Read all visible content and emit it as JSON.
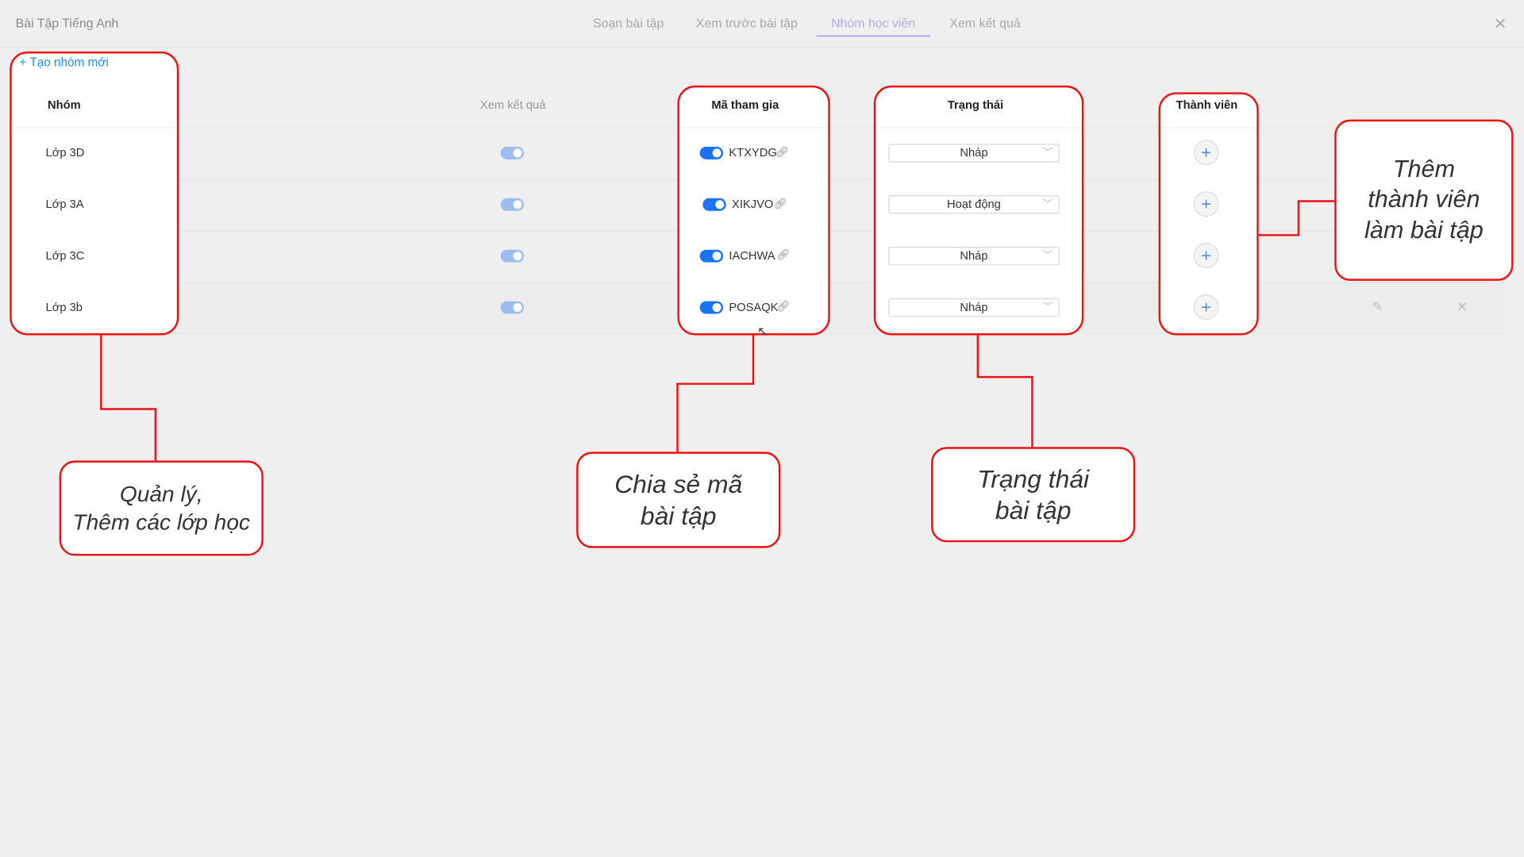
{
  "header": {
    "title": "Bài Tập Tiếng Anh",
    "tabs": [
      {
        "label": "Soạn bài tập"
      },
      {
        "label": "Xem trước bài tập"
      },
      {
        "label": "Nhóm học viên",
        "active": true
      },
      {
        "label": "Xem kết quả"
      }
    ],
    "close_icon": "close-icon"
  },
  "toolbar": {
    "create_group": "+ Tạo nhóm mới"
  },
  "table": {
    "columns": [
      "Nhóm",
      "Xem kết quả",
      "Mã tham gia",
      "Trạng thái",
      "Thành viên"
    ],
    "rows": [
      {
        "group": "Lớp 3D",
        "show_results": true,
        "code_enabled": true,
        "code": "KTXYDG",
        "status": "Nháp"
      },
      {
        "group": "Lớp 3A",
        "show_results": true,
        "code_enabled": true,
        "code": "XIKJVO",
        "status": "Hoạt động"
      },
      {
        "group": "Lớp 3C",
        "show_results": true,
        "code_enabled": true,
        "code": "IACHWA",
        "status": "Nháp"
      },
      {
        "group": "Lớp 3b",
        "show_results": true,
        "code_enabled": true,
        "code": "POSAQK",
        "status": "Nháp"
      }
    ]
  },
  "callouts": {
    "groups": "Quản lý,\nThêm các  lớp học",
    "share": "Chia sẻ mã\nbài tập",
    "status": "Trạng thái\nbài tập",
    "members": "Thêm\nthành viên\nlàm bài tập"
  },
  "colors": {
    "accent": "#1a73f5",
    "active_tab": "#b3aaf0",
    "annotation": "#ee1111"
  }
}
